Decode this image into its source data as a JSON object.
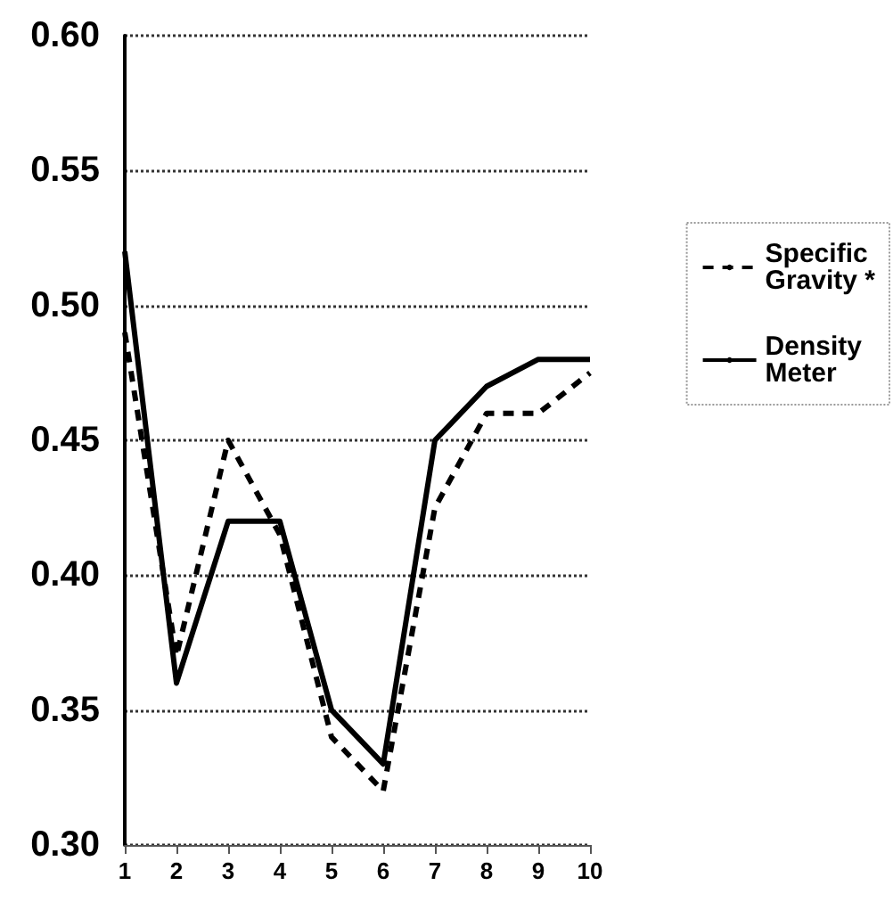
{
  "chart_data": {
    "type": "line",
    "categories": [
      "1",
      "2",
      "3",
      "4",
      "5",
      "6",
      "7",
      "8",
      "9",
      "10"
    ],
    "series": [
      {
        "name": "Specific Gravity *",
        "color": "#000000",
        "line_style": "dashed",
        "values": [
          0.49,
          0.37,
          0.45,
          0.415,
          0.34,
          0.32,
          0.425,
          0.46,
          0.46,
          0.475
        ]
      },
      {
        "name": "Density Meter",
        "color": "#000000",
        "line_style": "solid",
        "values": [
          0.52,
          0.36,
          0.42,
          0.42,
          0.35,
          0.33,
          0.45,
          0.47,
          0.48,
          0.48
        ]
      }
    ],
    "ylim": [
      0.3,
      0.6
    ],
    "yticks": [
      {
        "value": 0.3,
        "label": "0.30"
      },
      0.35,
      {
        "value": 0.4,
        "label": "0.40"
      },
      0.45,
      {
        "value": 0.5,
        "label": "0.50"
      },
      0.55,
      {
        "value": 0.6,
        "label": "0.60"
      }
    ],
    "grid": "y",
    "legend": "right",
    "marker": "none"
  }
}
